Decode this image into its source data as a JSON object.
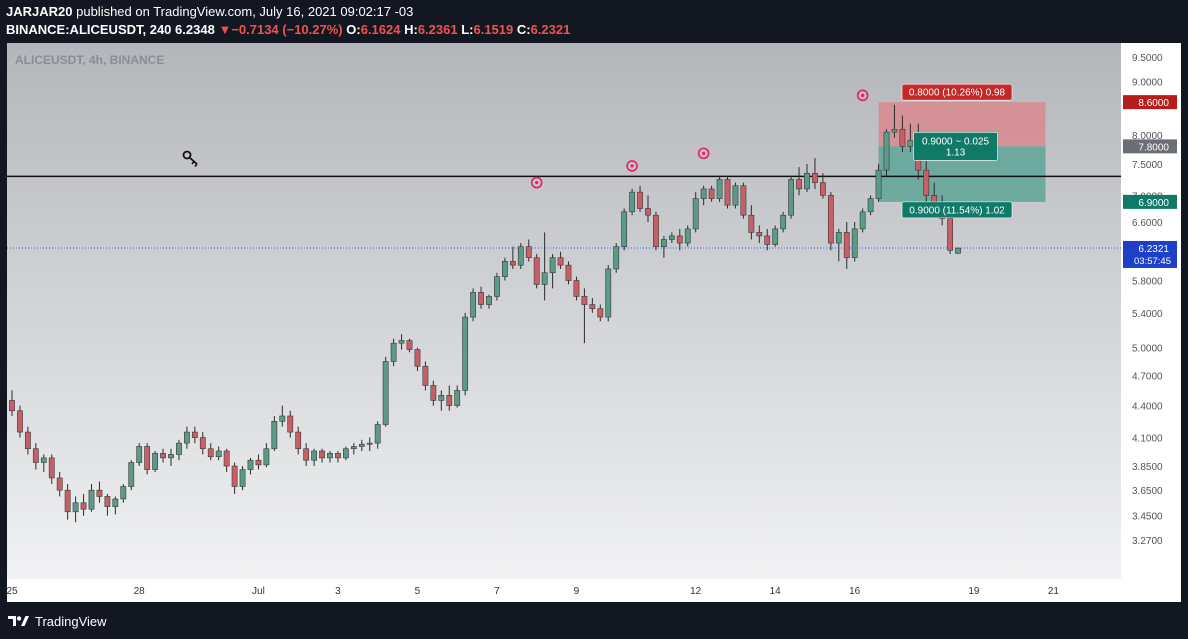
{
  "header": {
    "publisher": "JARJAR20",
    "published_line": "published on TradingView.com, July 16, 2021 09:02:17 -03",
    "symbol": "BINANCE:ALICEUSDT, 240",
    "last": "6.2348",
    "change_arrow": "▼",
    "change": "−0.7134 (−10.27%)",
    "o_label": "O:",
    "o_value": "6.1624",
    "h_label": "H:",
    "h_value": "6.2361",
    "l_label": "L:",
    "l_value": "6.1519",
    "c_label": "C:",
    "c_value": "6.2321"
  },
  "chart_title": "ALICEUSDT, 4h, BINANCE",
  "footer": {
    "brand": "TradingView",
    "logo_icon": "tradingview-logo-icon"
  },
  "colors": {
    "up": "#5a9a86",
    "down": "#c75f68",
    "wick": "#2b2b2b",
    "stop_zone": "#d88a8f",
    "target_zone": "#5fa598",
    "stop_label_bg": "#c62828",
    "target_label_bg": "#0f7a68",
    "price_label_bg": "#1e40c8",
    "marker": "#e91e63"
  },
  "chart_data": {
    "type": "candlestick",
    "interval": "4h",
    "y_scale": "log",
    "ylim": [
      3.0,
      9.8
    ],
    "y_ticks": [
      "9.5000",
      "9.0000",
      "8.0000",
      "7.5000",
      "7.0000",
      "6.6000",
      "5.8000",
      "5.4000",
      "5.0000",
      "4.7000",
      "4.4000",
      "4.1000",
      "3.8500",
      "3.6500",
      "3.4500",
      "3.2700"
    ],
    "x_ticks": [
      {
        "label": "25",
        "idx": 0
      },
      {
        "label": "28",
        "idx": 16
      },
      {
        "label": "Jul",
        "idx": 31
      },
      {
        "label": "3",
        "idx": 41
      },
      {
        "label": "5",
        "idx": 51
      },
      {
        "label": "7",
        "idx": 61
      },
      {
        "label": "9",
        "idx": 71
      },
      {
        "label": "12",
        "idx": 86
      },
      {
        "label": "14",
        "idx": 96
      },
      {
        "label": "16",
        "idx": 106
      },
      {
        "label": "19",
        "idx": 121
      },
      {
        "label": "21",
        "idx": 131
      }
    ],
    "candles": [
      [
        4.45,
        4.55,
        4.3,
        4.35
      ],
      [
        4.35,
        4.4,
        4.1,
        4.15
      ],
      [
        4.15,
        4.2,
        3.95,
        4.0
      ],
      [
        4.0,
        4.05,
        3.82,
        3.88
      ],
      [
        3.88,
        3.95,
        3.8,
        3.92
      ],
      [
        3.92,
        3.95,
        3.7,
        3.75
      ],
      [
        3.75,
        3.8,
        3.6,
        3.65
      ],
      [
        3.65,
        3.7,
        3.42,
        3.48
      ],
      [
        3.48,
        3.6,
        3.4,
        3.55
      ],
      [
        3.55,
        3.62,
        3.45,
        3.5
      ],
      [
        3.5,
        3.7,
        3.48,
        3.65
      ],
      [
        3.65,
        3.72,
        3.55,
        3.6
      ],
      [
        3.6,
        3.62,
        3.45,
        3.52
      ],
      [
        3.52,
        3.6,
        3.46,
        3.58
      ],
      [
        3.58,
        3.7,
        3.55,
        3.68
      ],
      [
        3.68,
        3.9,
        3.65,
        3.88
      ],
      [
        3.88,
        4.05,
        3.85,
        4.02
      ],
      [
        4.02,
        4.05,
        3.78,
        3.82
      ],
      [
        3.82,
        3.98,
        3.8,
        3.96
      ],
      [
        3.96,
        4.0,
        3.88,
        3.92
      ],
      [
        3.92,
        4.0,
        3.85,
        3.95
      ],
      [
        3.95,
        4.08,
        3.9,
        4.05
      ],
      [
        4.05,
        4.2,
        4.0,
        4.15
      ],
      [
        4.15,
        4.2,
        4.05,
        4.1
      ],
      [
        4.1,
        4.15,
        3.95,
        4.0
      ],
      [
        4.0,
        4.05,
        3.9,
        3.93
      ],
      [
        3.93,
        4.02,
        3.9,
        3.98
      ],
      [
        3.98,
        4.0,
        3.8,
        3.85
      ],
      [
        3.85,
        3.88,
        3.62,
        3.68
      ],
      [
        3.68,
        3.85,
        3.65,
        3.82
      ],
      [
        3.82,
        3.92,
        3.78,
        3.9
      ],
      [
        3.9,
        3.95,
        3.82,
        3.86
      ],
      [
        3.86,
        4.05,
        3.84,
        4.0
      ],
      [
        4.0,
        4.3,
        3.98,
        4.25
      ],
      [
        4.25,
        4.4,
        4.2,
        4.3
      ],
      [
        4.3,
        4.35,
        4.1,
        4.15
      ],
      [
        4.15,
        4.2,
        3.95,
        4.0
      ],
      [
        4.0,
        4.05,
        3.85,
        3.9
      ],
      [
        3.9,
        4.0,
        3.85,
        3.98
      ],
      [
        3.98,
        4.0,
        3.88,
        3.92
      ],
      [
        3.92,
        3.98,
        3.88,
        3.96
      ],
      [
        3.96,
        3.98,
        3.88,
        3.92
      ],
      [
        3.92,
        4.02,
        3.9,
        4.0
      ],
      [
        4.0,
        4.05,
        3.95,
        4.02
      ],
      [
        4.02,
        4.08,
        3.98,
        4.04
      ],
      [
        4.04,
        4.1,
        3.98,
        4.05
      ],
      [
        4.05,
        4.25,
        4.0,
        4.22
      ],
      [
        4.22,
        4.9,
        4.2,
        4.85
      ],
      [
        4.85,
        5.1,
        4.8,
        5.05
      ],
      [
        5.05,
        5.15,
        4.98,
        5.08
      ],
      [
        5.08,
        5.1,
        4.95,
        4.98
      ],
      [
        4.98,
        5.0,
        4.75,
        4.8
      ],
      [
        4.8,
        4.85,
        4.55,
        4.6
      ],
      [
        4.6,
        4.65,
        4.4,
        4.45
      ],
      [
        4.45,
        4.55,
        4.35,
        4.5
      ],
      [
        4.5,
        4.6,
        4.35,
        4.4
      ],
      [
        4.4,
        4.6,
        4.38,
        4.55
      ],
      [
        4.55,
        5.4,
        4.5,
        5.35
      ],
      [
        5.35,
        5.7,
        5.3,
        5.65
      ],
      [
        5.65,
        5.72,
        5.45,
        5.5
      ],
      [
        5.5,
        5.62,
        5.45,
        5.6
      ],
      [
        5.6,
        5.9,
        5.55,
        5.85
      ],
      [
        5.85,
        6.1,
        5.8,
        6.05
      ],
      [
        6.05,
        6.25,
        5.95,
        6.0
      ],
      [
        6.0,
        6.3,
        5.95,
        6.25
      ],
      [
        6.25,
        6.35,
        6.05,
        6.1
      ],
      [
        6.1,
        6.15,
        5.7,
        5.75
      ],
      [
        5.75,
        6.45,
        5.55,
        5.9
      ],
      [
        5.9,
        6.15,
        5.7,
        6.1
      ],
      [
        6.1,
        6.18,
        5.95,
        6.0
      ],
      [
        6.0,
        6.05,
        5.75,
        5.8
      ],
      [
        5.8,
        5.85,
        5.55,
        5.6
      ],
      [
        5.6,
        5.7,
        5.05,
        5.5
      ],
      [
        5.5,
        5.58,
        5.4,
        5.45
      ],
      [
        5.45,
        5.5,
        5.3,
        5.35
      ],
      [
        5.35,
        6.0,
        5.3,
        5.95
      ],
      [
        5.95,
        6.3,
        5.9,
        6.25
      ],
      [
        6.25,
        6.8,
        6.2,
        6.75
      ],
      [
        6.75,
        7.1,
        6.7,
        7.05
      ],
      [
        7.05,
        7.15,
        6.75,
        6.8
      ],
      [
        6.8,
        7.0,
        6.6,
        6.7
      ],
      [
        6.7,
        6.75,
        6.2,
        6.25
      ],
      [
        6.25,
        6.4,
        6.1,
        6.35
      ],
      [
        6.35,
        6.45,
        6.3,
        6.4
      ],
      [
        6.4,
        6.5,
        6.2,
        6.3
      ],
      [
        6.3,
        6.55,
        6.25,
        6.5
      ],
      [
        6.5,
        7.05,
        6.45,
        6.95
      ],
      [
        6.95,
        7.15,
        6.85,
        7.1
      ],
      [
        7.1,
        7.15,
        6.9,
        6.95
      ],
      [
        6.95,
        7.3,
        6.9,
        7.25
      ],
      [
        7.25,
        7.3,
        6.8,
        6.85
      ],
      [
        6.85,
        7.2,
        6.8,
        7.15
      ],
      [
        7.15,
        7.2,
        6.65,
        6.7
      ],
      [
        6.7,
        6.85,
        6.35,
        6.45
      ],
      [
        6.45,
        6.55,
        6.3,
        6.4
      ],
      [
        6.4,
        6.5,
        6.2,
        6.28
      ],
      [
        6.28,
        6.55,
        6.25,
        6.5
      ],
      [
        6.5,
        6.75,
        6.45,
        6.7
      ],
      [
        6.7,
        7.3,
        6.65,
        7.25
      ],
      [
        7.25,
        7.45,
        7.0,
        7.1
      ],
      [
        7.1,
        7.5,
        7.05,
        7.35
      ],
      [
        7.35,
        7.6,
        7.1,
        7.2
      ],
      [
        7.2,
        7.35,
        6.95,
        7.0
      ],
      [
        7.0,
        7.05,
        6.2,
        6.3
      ],
      [
        6.3,
        6.5,
        6.05,
        6.45
      ],
      [
        6.45,
        6.6,
        5.95,
        6.1
      ],
      [
        6.1,
        6.6,
        6.05,
        6.5
      ],
      [
        6.5,
        6.8,
        6.45,
        6.75
      ],
      [
        6.75,
        7.0,
        6.7,
        6.95
      ],
      [
        6.95,
        7.5,
        6.9,
        7.4
      ],
      [
        7.4,
        8.1,
        7.3,
        8.05
      ],
      [
        8.05,
        8.55,
        7.95,
        8.1
      ],
      [
        8.1,
        8.35,
        7.7,
        7.8
      ],
      [
        7.8,
        8.2,
        7.7,
        7.9
      ],
      [
        7.9,
        8.2,
        7.25,
        7.4
      ],
      [
        7.4,
        7.55,
        6.9,
        7.0
      ],
      [
        7.0,
        7.2,
        6.8,
        6.9
      ],
      [
        6.9,
        7.0,
        6.55,
        6.65
      ],
      [
        6.65,
        6.7,
        6.15,
        6.2
      ],
      [
        6.16,
        6.24,
        6.15,
        6.23
      ]
    ],
    "resistance_line": 7.3,
    "markers": [
      {
        "idx": 66,
        "price": 7.2
      },
      {
        "idx": 78,
        "price": 7.47
      },
      {
        "idx": 87,
        "price": 7.68
      },
      {
        "idx": 107,
        "price": 8.73
      }
    ],
    "position": {
      "type": "short",
      "entry": 7.8,
      "stop": 8.6,
      "target": 6.9,
      "start_idx": 109,
      "end_idx": 130,
      "stop_label": "0.8000 (10.26%) 0.98",
      "target_label": "0.9000 (11.54%) 1.02",
      "mid_label_1": "0.9000 ~ 0.025",
      "mid_label_2": "1.13"
    },
    "price_labels": [
      {
        "price": 8.6,
        "text": "8.6000",
        "color": "#b71c1c"
      },
      {
        "price": 7.8,
        "text": "7.8000",
        "color": "#6b6e75"
      },
      {
        "price": 6.9,
        "text": "6.9000",
        "color": "#0f7a68"
      }
    ],
    "last_price": {
      "value": 6.2321,
      "text": "6.2321",
      "countdown": "03:57:45"
    }
  }
}
